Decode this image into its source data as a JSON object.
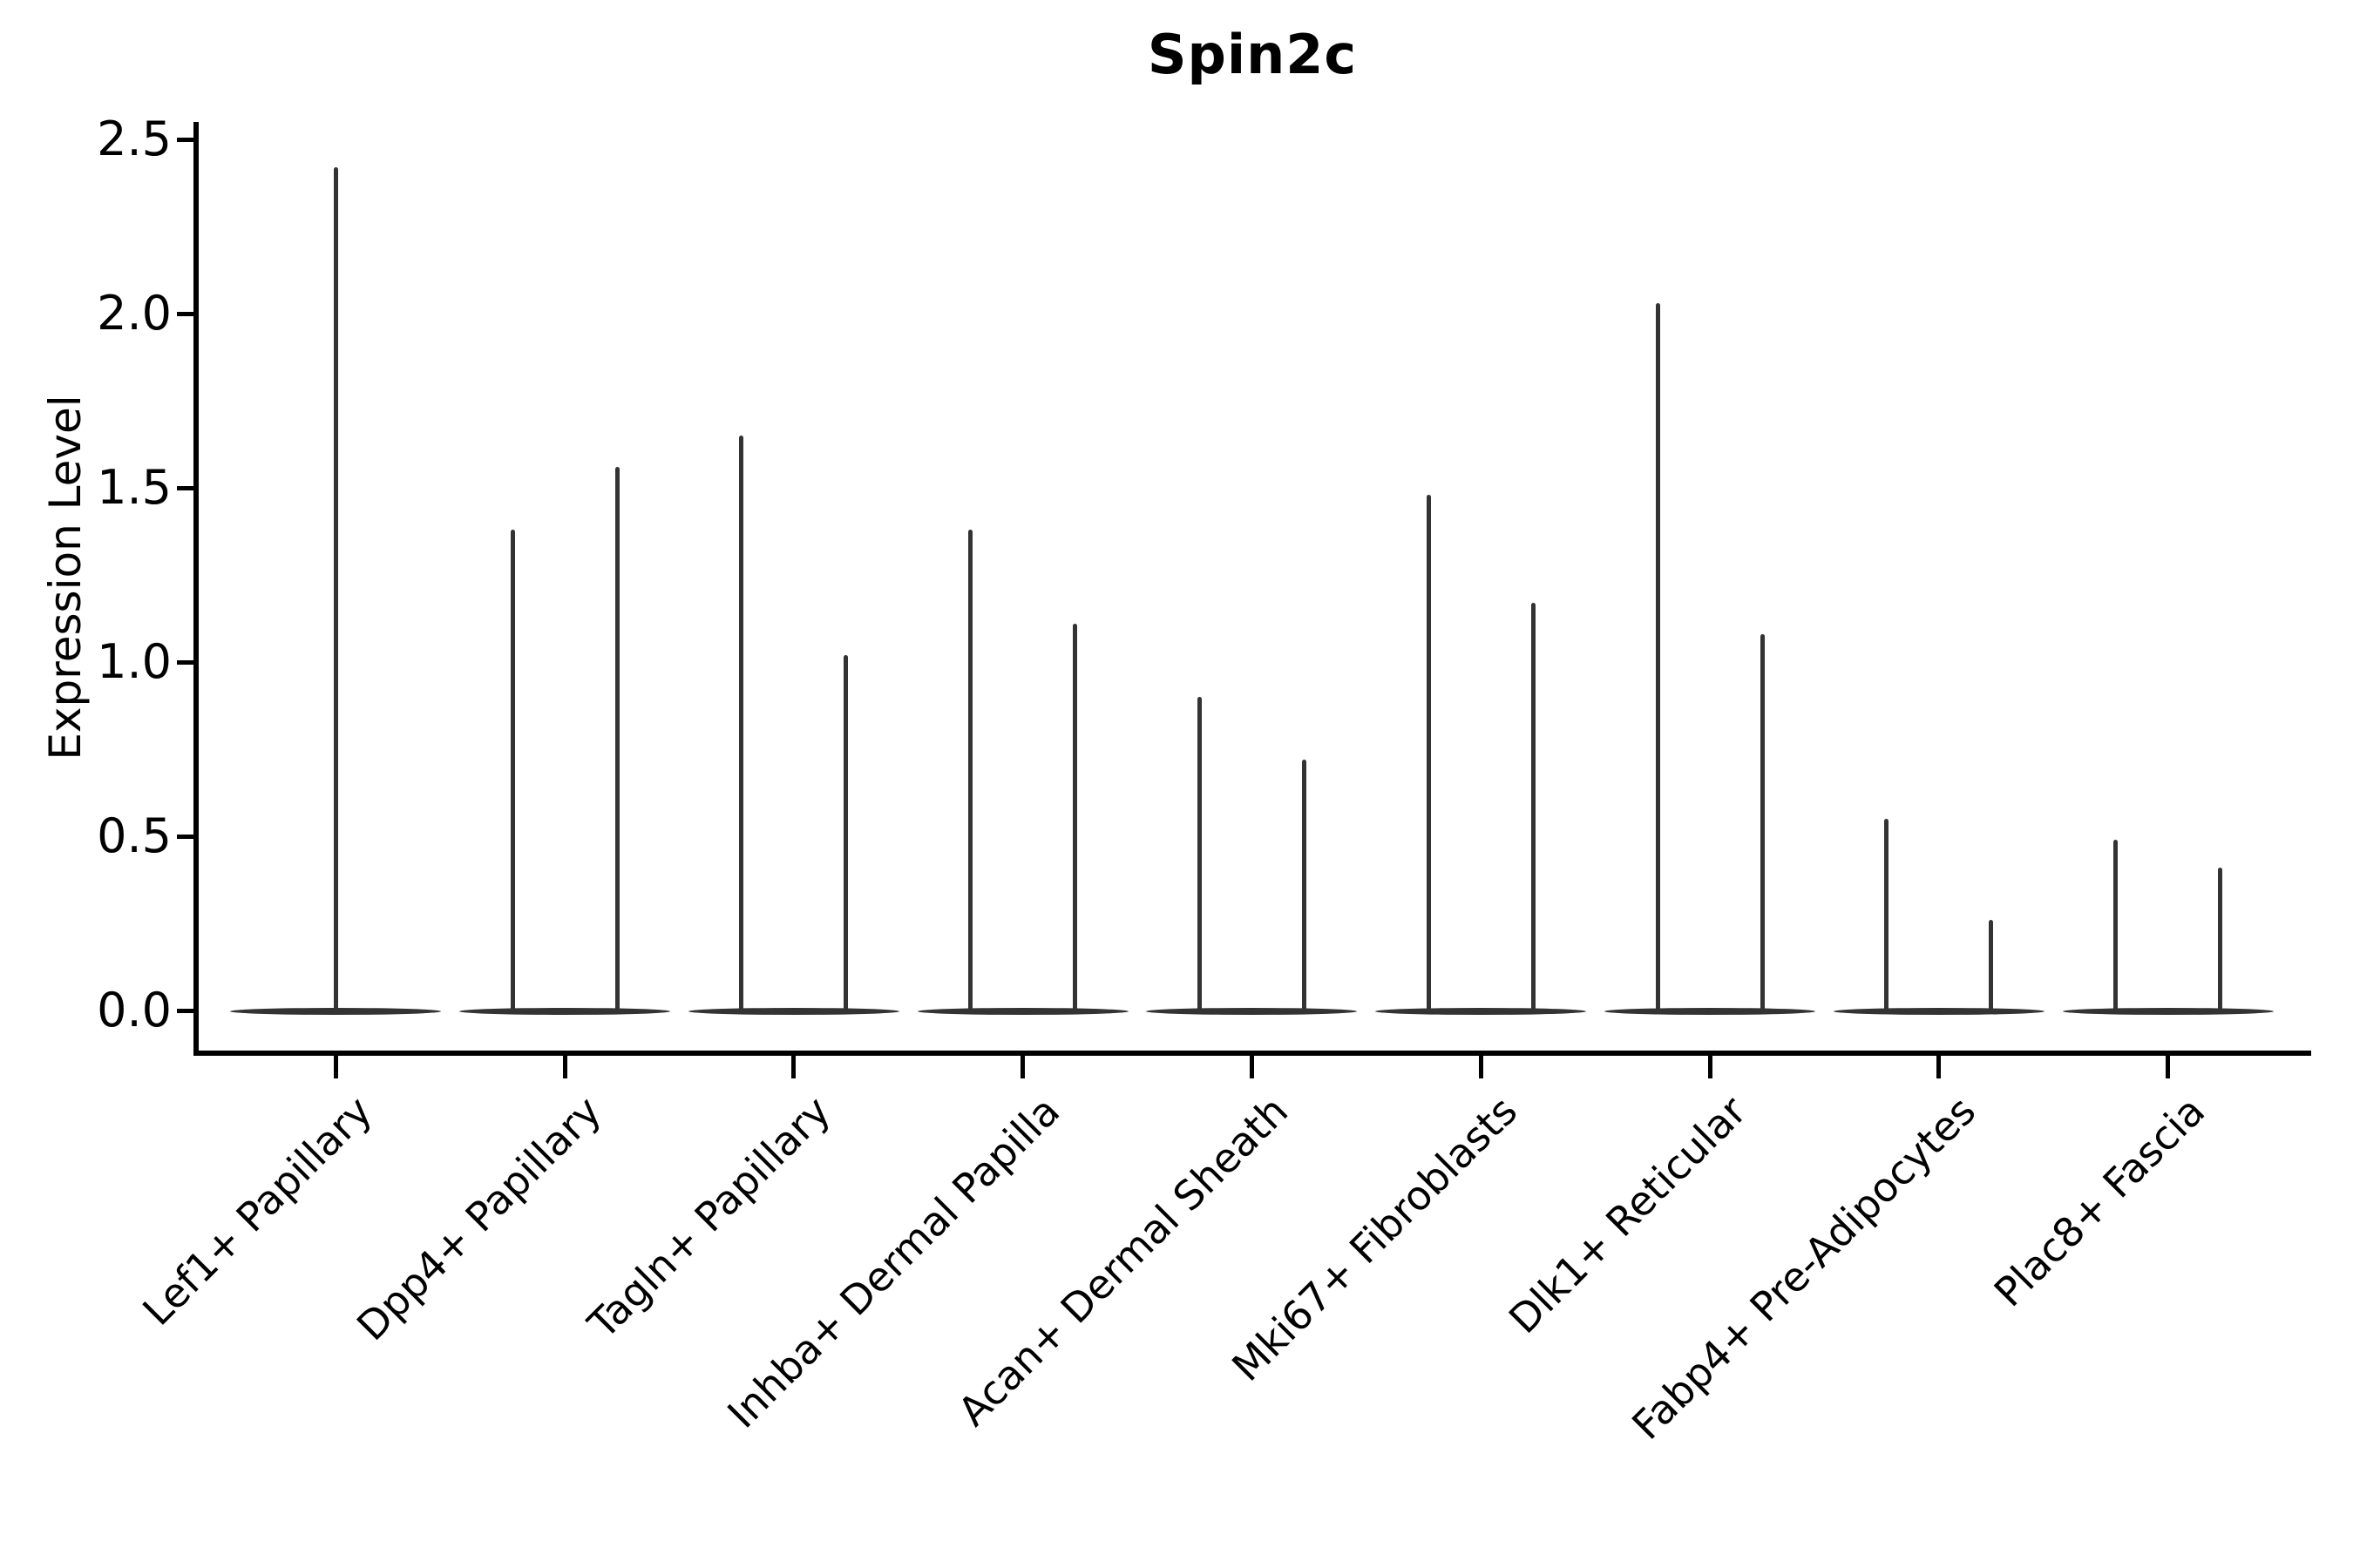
{
  "chart_data": {
    "type": "violin",
    "title": "Spin2c",
    "ylabel": "Expression Level",
    "xlabel": "",
    "ylim": [
      -0.12,
      2.55
    ],
    "yticks": [
      "0.0",
      "0.5",
      "1.0",
      "1.5",
      "2.0",
      "2.5"
    ],
    "grid": false,
    "legend_position": "none",
    "line_color": "#333333",
    "background_color": "#ffffff",
    "categories": [
      "Lef1+ Papillary",
      "Dpp4+ Papillary",
      "Tagln+ Papillary",
      "Inhba+ Dermal Papilla",
      "Acan+ Dermal Sheath",
      "Mki67+ Fibroblasts",
      "Dlk1+ Reticular",
      "Fabp4+ Pre-Adipocytes",
      "Plac8+ Fascia"
    ],
    "violins": [
      {
        "category": "Lef1+ Papillary",
        "peaks": [
          2.42
        ]
      },
      {
        "category": "Dpp4+ Papillary",
        "peaks": [
          1.38,
          1.56
        ]
      },
      {
        "category": "Tagln+ Papillary",
        "peaks": [
          1.65,
          1.02
        ]
      },
      {
        "category": "Inhba+ Dermal Papilla",
        "peaks": [
          1.38,
          1.11
        ]
      },
      {
        "category": "Acan+ Dermal Sheath",
        "peaks": [
          0.9,
          0.72
        ]
      },
      {
        "category": "Mki67+ Fibroblasts",
        "peaks": [
          1.48,
          1.17
        ]
      },
      {
        "category": "Dlk1+ Reticular",
        "peaks": [
          2.03,
          1.08
        ]
      },
      {
        "category": "Fabp4+ Pre-Adipocytes",
        "peaks": [
          0.55,
          0.26
        ]
      },
      {
        "category": "Plac8+ Fascia",
        "peaks": [
          0.49,
          0.41
        ]
      }
    ],
    "note": "Violin plot of gene expression; each violin mass concentrated at 0 with a thin density spike up to its peak value"
  }
}
